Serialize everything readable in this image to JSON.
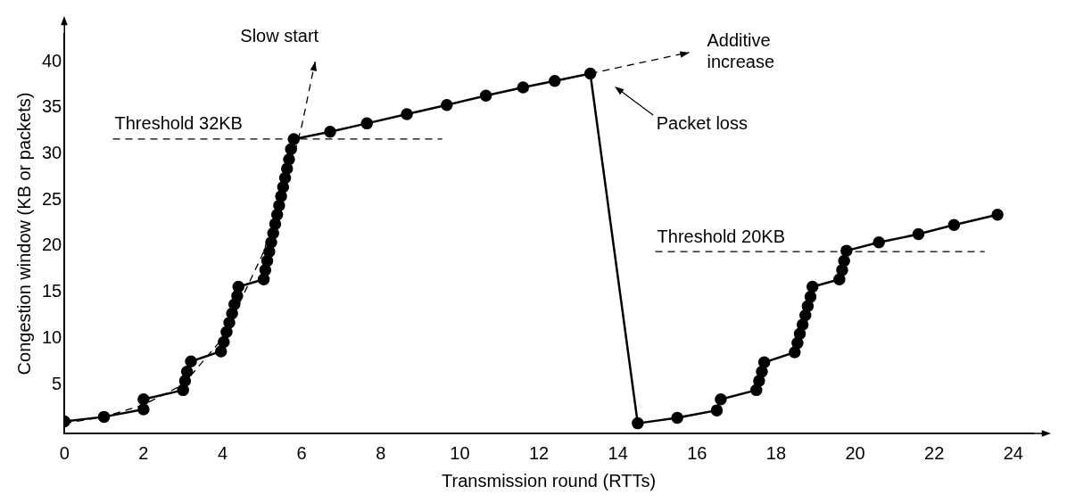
{
  "chart_data": {
    "type": "line",
    "xlabel": "Transmission round (RTTs)",
    "ylabel": "Congestion window (KB or packets)",
    "xlim": [
      0,
      24.5
    ],
    "ylim": [
      -0.3,
      43
    ],
    "xticks": [
      0,
      2,
      4,
      6,
      8,
      10,
      12,
      14,
      16,
      18,
      20,
      22,
      24
    ],
    "yticks": [
      5,
      10,
      15,
      20,
      25,
      30,
      35,
      40
    ],
    "grid": false,
    "legend": false,
    "series": [
      {
        "type": "line",
        "color": "#000000",
        "marker": "circle",
        "line_style": "solid",
        "x": [
          0,
          1,
          2,
          2,
          3,
          3.05,
          3.1,
          3.2,
          3.96,
          4.03,
          4.1,
          4.17,
          4.24,
          4.3,
          4.37,
          4.4,
          5.04,
          5.08,
          5.13,
          5.18,
          5.23,
          5.28,
          5.33,
          5.38,
          5.43,
          5.48,
          5.53,
          5.58,
          5.63,
          5.68,
          5.73,
          5.8,
          6.72,
          7.65,
          8.66,
          9.67,
          10.66,
          11.6,
          12.4,
          13.3,
          14.5,
          15.5,
          16.5,
          16.6,
          17.5,
          17.57,
          17.64,
          17.7,
          18.47,
          18.54,
          18.6,
          18.67,
          18.74,
          18.8,
          18.87,
          18.92,
          19.6,
          19.67,
          19.72,
          19.78,
          20.6,
          21.6,
          22.5,
          23.6
        ],
        "values": [
          1,
          1.5,
          2.3,
          3.4,
          4.4,
          5.4,
          6.4,
          7.5,
          8.6,
          9.6,
          10.7,
          11.7,
          12.7,
          13.7,
          14.6,
          15.6,
          16.4,
          17.4,
          18.4,
          19.4,
          20.4,
          21.4,
          22.4,
          23.4,
          24.4,
          25.4,
          26.4,
          27.4,
          28.4,
          29.4,
          30.5,
          31.6,
          32.4,
          33.3,
          34.3,
          35.3,
          36.3,
          37.2,
          37.9,
          38.7,
          0.8,
          1.4,
          2.2,
          3.4,
          4.4,
          5.4,
          6.4,
          7.4,
          8.5,
          9.5,
          10.5,
          11.5,
          12.5,
          13.5,
          14.5,
          15.6,
          16.4,
          17.4,
          18.4,
          19.5,
          20.4,
          21.3,
          22.3,
          23.4
        ]
      },
      {
        "type": "line",
        "color": "#000000",
        "marker": "none",
        "line_style": "dashed",
        "x": [
          0,
          1,
          2,
          3,
          4,
          5,
          5.5,
          6,
          6.34
        ],
        "values": [
          0.8,
          1.5,
          2.8,
          5,
          10,
          19,
          25,
          33,
          40
        ]
      },
      {
        "type": "line",
        "color": "#000000",
        "line_style": "dashed",
        "x": [
          13.3,
          15.8
        ],
        "values": [
          38.7,
          41
        ]
      }
    ],
    "ref_lines": [
      {
        "axis": "y",
        "value": 31.6,
        "label": "Threshold 32KB",
        "line_style": "dashed",
        "color": "#000000"
      },
      {
        "axis": "y",
        "value": 19.4,
        "label": "Threshold 20KB",
        "line_style": "dashed",
        "color": "#000000"
      }
    ],
    "annotations": [
      {
        "text": "Slow start",
        "x": 6.34,
        "y": 40
      },
      {
        "text": "Additive increase",
        "x": 15.8,
        "y": 41
      },
      "Packet loss"
    ]
  }
}
